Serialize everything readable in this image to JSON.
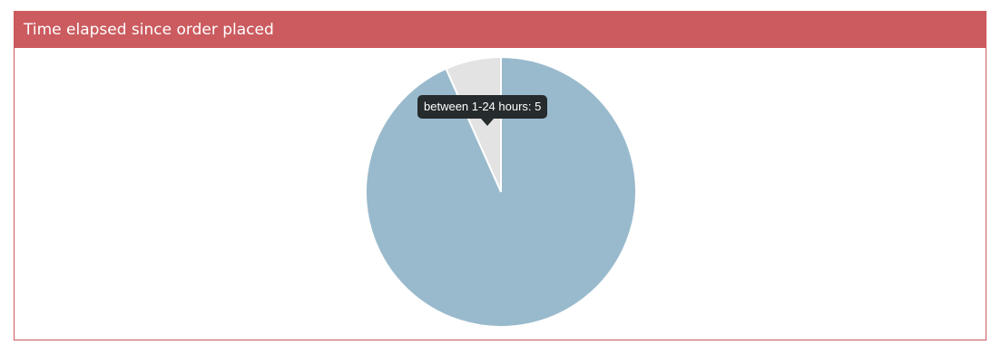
{
  "panel": {
    "title": "Time elapsed since order placed"
  },
  "chart_data": {
    "type": "pie",
    "title": "",
    "categories": [
      "between 1-24 hours",
      ""
    ],
    "values": [
      5,
      70
    ],
    "colors": [
      "#e3e3e3",
      "#99bacc"
    ],
    "legend": "none"
  },
  "tooltip": {
    "category": "between 1-24 hours",
    "value": 5,
    "text": "between 1-24 hours: 5"
  }
}
